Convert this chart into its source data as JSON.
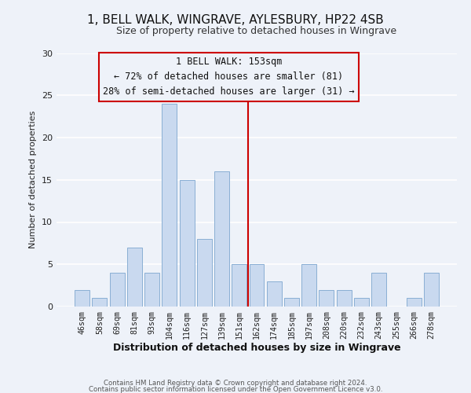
{
  "title": "1, BELL WALK, WINGRAVE, AYLESBURY, HP22 4SB",
  "subtitle": "Size of property relative to detached houses in Wingrave",
  "xlabel": "Distribution of detached houses by size in Wingrave",
  "ylabel": "Number of detached properties",
  "bar_labels": [
    "46sqm",
    "58sqm",
    "69sqm",
    "81sqm",
    "93sqm",
    "104sqm",
    "116sqm",
    "127sqm",
    "139sqm",
    "151sqm",
    "162sqm",
    "174sqm",
    "185sqm",
    "197sqm",
    "208sqm",
    "220sqm",
    "232sqm",
    "243sqm",
    "255sqm",
    "266sqm",
    "278sqm"
  ],
  "bar_values": [
    2,
    1,
    4,
    7,
    4,
    24,
    15,
    8,
    16,
    5,
    5,
    3,
    1,
    5,
    2,
    2,
    1,
    4,
    0,
    1,
    4
  ],
  "bar_color": "#c9d9ef",
  "bar_edge_color": "#8aafd4",
  "vline_x_index": 9.5,
  "vline_color": "#cc0000",
  "annotation_title": "1 BELL WALK: 153sqm",
  "annotation_line1": "← 72% of detached houses are smaller (81)",
  "annotation_line2": "28% of semi-detached houses are larger (31) →",
  "annotation_box_edgecolor": "#cc0000",
  "ylim": [
    0,
    30
  ],
  "yticks": [
    0,
    5,
    10,
    15,
    20,
    25,
    30
  ],
  "footer1": "Contains HM Land Registry data © Crown copyright and database right 2024.",
  "footer2": "Contains public sector information licensed under the Open Government Licence v3.0.",
  "bg_color": "#eef2f9",
  "grid_color": "#ffffff",
  "title_fontsize": 11,
  "subtitle_fontsize": 9,
  "xlabel_fontsize": 9,
  "ylabel_fontsize": 8
}
